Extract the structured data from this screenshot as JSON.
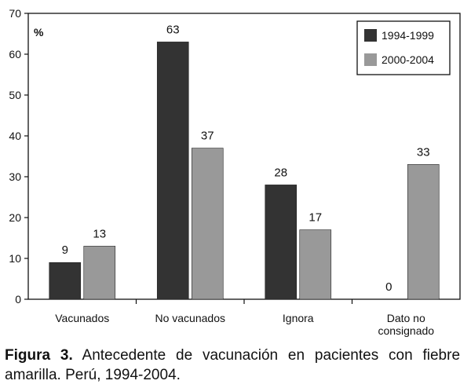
{
  "chart_data": {
    "type": "bar",
    "ylabel": "%",
    "ylim": [
      0,
      70
    ],
    "yticks": [
      0,
      10,
      20,
      30,
      40,
      50,
      60,
      70
    ],
    "categories": [
      "Vacunados",
      "No vacunados",
      "Ignora",
      "Dato no consignado"
    ],
    "category_lines": [
      [
        "Vacunados"
      ],
      [
        "No vacunados"
      ],
      [
        "Ignora"
      ],
      [
        "Dato no",
        "consignado"
      ]
    ],
    "series": [
      {
        "name": "1994-1999",
        "color": "#333333",
        "values": [
          9,
          63,
          28,
          0
        ]
      },
      {
        "name": "2000-2004",
        "color": "#999999",
        "values": [
          13,
          37,
          17,
          33
        ]
      }
    ],
    "legend_position": "top-right",
    "grid": false
  },
  "caption": {
    "label": "Figura 3.",
    "text": "Antecedente de vacunación en pacientes con fiebre amarilla. Perú, 1994-2004."
  }
}
